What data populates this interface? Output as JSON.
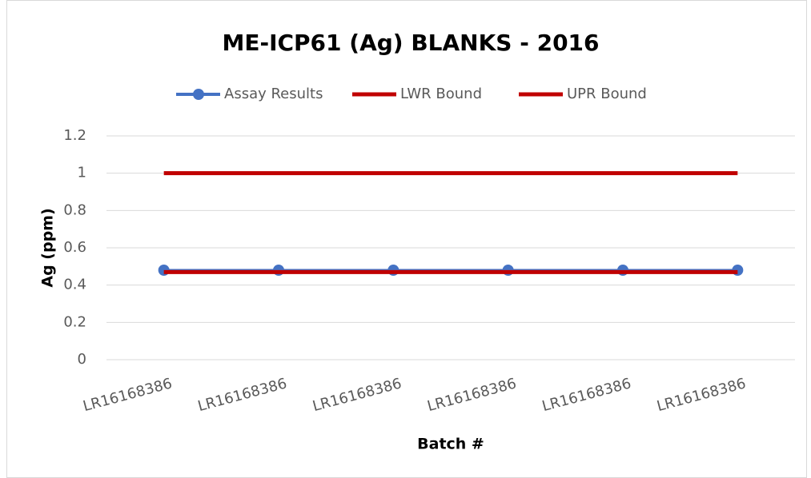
{
  "chart_data": {
    "type": "line",
    "title": "ME-ICP61 (Ag) BLANKS - 2016",
    "x_label": "Batch #",
    "y_label": "Ag (ppm)",
    "categories": [
      "LR16168386",
      "LR16168386",
      "LR16168386",
      "LR16168386",
      "LR16168386",
      "LR16168386"
    ],
    "series": [
      {
        "name": "Assay Results",
        "color": "#4472c4",
        "values": [
          0.48,
          0.48,
          0.48,
          0.48,
          0.48,
          0.48
        ],
        "markers": true
      },
      {
        "name": "LWR Bound",
        "color": "#c00000",
        "values": [
          0.47,
          0.47,
          0.47,
          0.47,
          0.47,
          0.47
        ],
        "markers": false
      },
      {
        "name": "UPR Bound",
        "color": "#c00000",
        "values": [
          1,
          1,
          1,
          1,
          1,
          1
        ],
        "markers": false
      }
    ],
    "ylim": [
      0,
      1.2
    ],
    "yticks": [
      0,
      0.2,
      0.4,
      0.6,
      0.8,
      1,
      1.2
    ],
    "grid": true,
    "legend": "top"
  }
}
